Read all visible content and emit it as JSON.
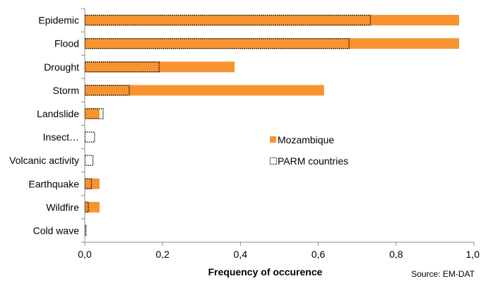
{
  "chart_data": {
    "type": "bar",
    "orientation": "horizontal",
    "categories": [
      "Epidemic",
      "Flood",
      "Drought",
      "Storm",
      "Landslide",
      "Insect…",
      "Volcanic activity",
      "Earthquake",
      "Wildfire",
      "Cold wave"
    ],
    "series": [
      {
        "name": "Mozambique",
        "style": "solid",
        "color": "#F79431",
        "values": [
          0.962,
          0.962,
          0.385,
          0.615,
          0.038,
          0.0,
          0.0,
          0.038,
          0.038,
          0.0
        ]
      },
      {
        "name": "PARM countries",
        "style": "dotted-outline",
        "color": "#000000",
        "values": [
          0.735,
          0.68,
          0.192,
          0.115,
          0.048,
          0.026,
          0.022,
          0.018,
          0.01,
          0.004
        ]
      }
    ],
    "xlabel": "Frequency of occurence",
    "ylabel": "",
    "xlim": [
      0,
      1.0
    ],
    "xticks": [
      "0,0",
      "0,2",
      "0,4",
      "0,6",
      "0,8",
      "1,0"
    ],
    "grid": false,
    "legend_position": "center-right",
    "source": "Source: EM-DAT"
  }
}
